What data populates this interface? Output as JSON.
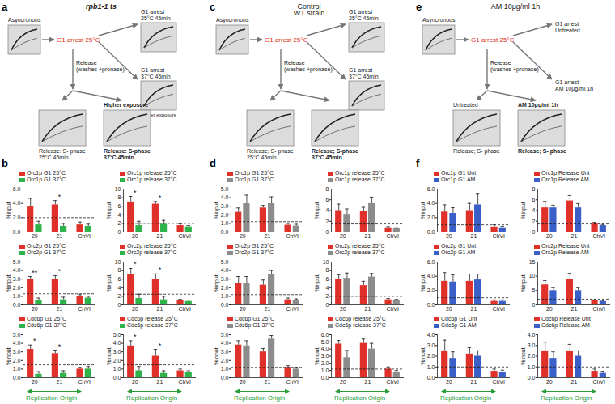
{
  "diagrams": [
    {
      "letter": "a",
      "title": [
        "rpb1-1 ts"
      ],
      "start": [
        "Asyncronous"
      ],
      "arrest": [
        "G1 arrest 25°C"
      ],
      "release": [
        "Release",
        "(washes +pronase)"
      ],
      "side_gels": [
        {
          "above": [
            "G1 arrest",
            "25°C 45min"
          ],
          "below": []
        },
        {
          "above": [
            "G1 arrest",
            "37°C 45min"
          ],
          "below": [
            "Higher exposure"
          ]
        }
      ],
      "bottom_gels": [
        {
          "above": [],
          "below": [
            "Release: S- phase",
            "25°C 45min"
          ]
        },
        {
          "above": [
            "Higher exposure"
          ],
          "below": [
            "Release: S-phase",
            "37°C 45min"
          ]
        }
      ]
    },
    {
      "letter": "c",
      "title": [
        "Control",
        "WT strain"
      ],
      "start": [
        "Asyncronous"
      ],
      "arrest": [
        "G1 arrest 25°C"
      ],
      "release": [
        "Release",
        "(washes +pronase)"
      ],
      "side_gels": [
        {
          "above": [
            "G1 arrest",
            "25°C 45min"
          ],
          "below": []
        },
        {
          "above": [
            "G1 arrest",
            "37°C 45min"
          ],
          "below": []
        }
      ],
      "bottom_gels": [
        {
          "above": [],
          "below": [
            "Release; S- phase",
            "25°C 45min"
          ]
        },
        {
          "above": [],
          "below": [
            "Release; S-phase",
            "37°C 45min"
          ]
        }
      ]
    },
    {
      "letter": "e",
      "title": [
        "AM 10μg/ml 1h"
      ],
      "start": [
        "Asyncronous"
      ],
      "arrest": [
        "G1 arrest 25°C"
      ],
      "release": [
        "Release",
        "(washes +pronase)"
      ],
      "side_labels": [
        [
          "G1 arrest",
          "Untreated"
        ],
        [
          "G1 arrest",
          "AM 10μg/ml 1h"
        ]
      ],
      "bottom_gels": [
        {
          "above": [
            "Untreated"
          ],
          "below": [
            "Release; S- phase"
          ]
        },
        {
          "above": [
            "AM 10μg/ml 1h"
          ],
          "below": [
            "Release; S- phase"
          ]
        }
      ]
    }
  ],
  "chart_panels": [
    {
      "letter": "b",
      "footer": "Replication Origin"
    },
    {
      "letter": "d",
      "footer": "Replication Origin"
    },
    {
      "letter": "f",
      "footer": "Replication Origin"
    }
  ],
  "chart_data": [
    {
      "type": "bar",
      "categories": [
        "20",
        "21",
        "ChVI"
      ],
      "y_label": "%input",
      "ylim": [
        0,
        6
      ],
      "yticks": [
        0,
        2,
        4,
        6
      ],
      "legend": "top-left",
      "reference_line": 2,
      "series": [
        {
          "name": "Orc1p G1 25°C",
          "color": "#e0302a",
          "values": [
            3.5,
            3.8,
            1.0
          ],
          "errors": [
            1.2,
            0.6,
            0.4
          ]
        },
        {
          "name": "Orc1p G1 37°C",
          "color": "#2db34a",
          "values": [
            1.0,
            0.8,
            0.8
          ],
          "errors": [
            0.5,
            0.4,
            0.3
          ]
        }
      ],
      "annotations": [
        {
          "category": "21",
          "text": "*"
        }
      ]
    },
    {
      "type": "bar",
      "categories": [
        "20",
        "21",
        "ChVI"
      ],
      "y_label": "%input",
      "ylim": [
        0,
        10
      ],
      "yticks": [
        0,
        2,
        4,
        6,
        8,
        10
      ],
      "legend": "top-left",
      "reference_line": 2,
      "series": [
        {
          "name": "Orc1p release 25°C",
          "color": "#e0302a",
          "values": [
            7.0,
            6.5,
            1.5
          ],
          "errors": [
            1.3,
            0.6,
            0.4
          ]
        },
        {
          "name": "Orc1p release 37°C",
          "color": "#2db34a",
          "values": [
            1.5,
            1.8,
            1.2
          ],
          "errors": [
            1.0,
            0.9,
            0.3
          ]
        }
      ],
      "annotations": [
        {
          "category": "20",
          "text": "*"
        },
        {
          "category": "21",
          "text": "*"
        }
      ]
    },
    {
      "type": "bar",
      "categories": [
        "20",
        "21",
        "ChVI"
      ],
      "y_label": "%input",
      "ylim": [
        0,
        5
      ],
      "yticks": [
        0,
        1,
        2,
        3,
        4,
        5
      ],
      "legend": "top-left",
      "reference_line": 1.3,
      "series": [
        {
          "name": "Orc2p G1 25°C",
          "color": "#e0302a",
          "values": [
            3.0,
            3.0,
            1.0
          ],
          "errors": [
            0.3,
            0.4,
            0.2
          ]
        },
        {
          "name": "Orc2p G1 37°C",
          "color": "#2db34a",
          "values": [
            0.5,
            0.6,
            0.8
          ],
          "errors": [
            0.3,
            0.3,
            0.2
          ]
        }
      ],
      "annotations": [
        {
          "category": "20",
          "text": "**"
        },
        {
          "category": "21",
          "text": "*"
        }
      ]
    },
    {
      "type": "bar",
      "categories": [
        "20",
        "21",
        "ChVI"
      ],
      "y_label": "%input",
      "ylim": [
        0,
        10
      ],
      "yticks": [
        0,
        2,
        4,
        6,
        8,
        10
      ],
      "legend": "top-left",
      "reference_line": 2.5,
      "series": [
        {
          "name": "Orc2p release 25°C",
          "color": "#e0302a",
          "values": [
            7.0,
            6.0,
            1.0
          ],
          "errors": [
            1.5,
            1.2,
            0.3
          ]
        },
        {
          "name": "Orc2p release 37°C",
          "color": "#2db34a",
          "values": [
            1.5,
            1.2,
            0.8
          ],
          "errors": [
            1.0,
            0.8,
            0.3
          ]
        }
      ],
      "annotations": [
        {
          "category": "20",
          "text": "*"
        },
        {
          "category": "21",
          "text": "*"
        }
      ]
    },
    {
      "type": "bar",
      "categories": [
        "20",
        "21",
        "ChVI"
      ],
      "y_label": "%input",
      "ylim": [
        0,
        5
      ],
      "yticks": [
        0,
        1,
        2,
        3,
        4,
        5
      ],
      "legend": "top-left",
      "reference_line": 1.5,
      "series": [
        {
          "name": "Cdc6p G1 25°C",
          "color": "#e0302a",
          "values": [
            3.3,
            2.8,
            1.0
          ],
          "errors": [
            0.5,
            0.4,
            0.2
          ]
        },
        {
          "name": "Cdc6p G1 37°C",
          "color": "#2db34a",
          "values": [
            0.4,
            0.5,
            1.0
          ],
          "errors": [
            0.3,
            0.3,
            0.3
          ]
        }
      ],
      "annotations": [
        {
          "category": "20",
          "text": "*"
        },
        {
          "category": "21",
          "text": "*"
        }
      ]
    },
    {
      "type": "bar",
      "categories": [
        "20",
        "21",
        "ChVI"
      ],
      "y_label": "%input",
      "ylim": [
        0,
        5
      ],
      "yticks": [
        0,
        1,
        2,
        3,
        4,
        5
      ],
      "legend": "top-left",
      "reference_line": 1.5,
      "series": [
        {
          "name": "Cdc6p release 25°C",
          "color": "#e0302a",
          "values": [
            3.7,
            2.5,
            0.8
          ],
          "errors": [
            0.6,
            0.8,
            0.2
          ]
        },
        {
          "name": "Cdc6p release 37°C",
          "color": "#2db34a",
          "values": [
            0.8,
            0.5,
            0.6
          ],
          "errors": [
            0.5,
            0.3,
            0.2
          ]
        }
      ],
      "annotations": [
        {
          "category": "20",
          "text": "*"
        },
        {
          "category": "21",
          "text": "*"
        }
      ]
    },
    {
      "type": "bar",
      "categories": [
        "20",
        "21",
        "ChVI"
      ],
      "y_label": "%input",
      "ylim": [
        0,
        5
      ],
      "yticks": [
        0,
        1,
        2,
        3,
        4,
        5
      ],
      "legend": "top-left",
      "reference_line": 1.2,
      "series": [
        {
          "name": "Orc1p G1 25°C",
          "color": "#e0302a",
          "values": [
            2.3,
            2.8,
            0.8
          ],
          "errors": [
            0.5,
            0.3,
            0.2
          ]
        },
        {
          "name": "Orc1p G1 37°C",
          "color": "#8c8c8c",
          "values": [
            3.3,
            3.3,
            0.7
          ],
          "errors": [
            1.0,
            0.8,
            0.2
          ]
        }
      ]
    },
    {
      "type": "bar",
      "categories": [
        "20",
        "21",
        "ChVI"
      ],
      "y_label": "%input",
      "ylim": [
        0,
        8
      ],
      "yticks": [
        0,
        2,
        4,
        6,
        8
      ],
      "legend": "top-left",
      "reference_line": 1.5,
      "series": [
        {
          "name": "Orc1p release 25°C",
          "color": "#e0302a",
          "values": [
            4.0,
            3.8,
            0.8
          ],
          "errors": [
            1.2,
            0.8,
            0.2
          ]
        },
        {
          "name": "Orc1p release 37°C",
          "color": "#8c8c8c",
          "values": [
            3.3,
            5.3,
            0.6
          ],
          "errors": [
            1.0,
            1.2,
            0.2
          ]
        }
      ]
    },
    {
      "type": "bar",
      "categories": [
        "20",
        "21",
        "ChVI"
      ],
      "y_label": "%input",
      "ylim": [
        0,
        5
      ],
      "yticks": [
        0,
        1,
        2,
        3,
        4,
        5
      ],
      "legend": "top-left",
      "reference_line": 1.2,
      "series": [
        {
          "name": "Orc2p G1 25°C",
          "color": "#e0302a",
          "values": [
            2.5,
            2.3,
            0.6
          ],
          "errors": [
            0.8,
            0.6,
            0.2
          ]
        },
        {
          "name": "Orc2p G1 37°C",
          "color": "#8c8c8c",
          "values": [
            2.5,
            3.5,
            0.5
          ],
          "errors": [
            0.8,
            0.5,
            0.2
          ]
        }
      ]
    },
    {
      "type": "bar",
      "categories": [
        "20",
        "21",
        "ChVI"
      ],
      "y_label": "%input",
      "ylim": [
        0,
        10
      ],
      "yticks": [
        0,
        2,
        4,
        6,
        8,
        10
      ],
      "legend": "top-left",
      "reference_line": 2,
      "series": [
        {
          "name": "Orc2p release 25°C",
          "color": "#e0302a",
          "values": [
            6.0,
            4.5,
            1.2
          ],
          "errors": [
            1.0,
            1.0,
            0.3
          ]
        },
        {
          "name": "Orc2p release 37°C",
          "color": "#8c8c8c",
          "values": [
            6.2,
            6.5,
            1.0
          ],
          "errors": [
            1.2,
            0.8,
            0.3
          ]
        }
      ]
    },
    {
      "type": "bar",
      "categories": [
        "20",
        "21",
        "ChVI"
      ],
      "y_label": "%input",
      "ylim": [
        0,
        5
      ],
      "yticks": [
        0,
        1,
        2,
        3,
        4,
        5
      ],
      "legend": "top-left",
      "reference_line": 1.2,
      "series": [
        {
          "name": "Cdc6p G1 25°C",
          "color": "#e0302a",
          "values": [
            3.8,
            3.0,
            1.2
          ],
          "errors": [
            0.5,
            0.4,
            0.2
          ]
        },
        {
          "name": "Cdc6p G1 37°C",
          "color": "#8c8c8c",
          "values": [
            3.7,
            4.5,
            1.0
          ],
          "errors": [
            0.6,
            0.4,
            0.2
          ]
        }
      ]
    },
    {
      "type": "bar",
      "categories": [
        "20",
        "21",
        "ChVI"
      ],
      "y_label": "%input",
      "ylim": [
        0,
        6
      ],
      "yticks": [
        0,
        1,
        2,
        3,
        4,
        5,
        6
      ],
      "legend": "top-left",
      "reference_line": 1.2,
      "series": [
        {
          "name": "Cdc6p release 25°C",
          "color": "#e0302a",
          "values": [
            4.7,
            4.8,
            1.2
          ],
          "errors": [
            0.5,
            0.6,
            0.3
          ]
        },
        {
          "name": "Cdc6p release 37°C",
          "color": "#8c8c8c",
          "values": [
            2.8,
            4.0,
            0.8
          ],
          "errors": [
            1.0,
            0.8,
            0.2
          ]
        }
      ]
    },
    {
      "type": "bar",
      "categories": [
        "20",
        "21",
        "ChVI"
      ],
      "y_label": "%input",
      "ylim": [
        0,
        6
      ],
      "yticks": [
        0,
        2,
        4,
        6
      ],
      "legend": "top-left",
      "reference_line": 1,
      "series": [
        {
          "name": "Orc1p G1 Unt",
          "color": "#e0302a",
          "values": [
            2.8,
            3.0,
            0.7
          ],
          "errors": [
            1.0,
            1.0,
            0.3
          ]
        },
        {
          "name": "Orc1p G1 AM",
          "color": "#3a5fc8",
          "values": [
            2.6,
            3.8,
            0.6
          ],
          "errors": [
            0.8,
            1.5,
            0.2
          ]
        }
      ]
    },
    {
      "type": "bar",
      "categories": [
        "20",
        "21",
        "ChVI"
      ],
      "y_label": "%input",
      "ylim": [
        0,
        8
      ],
      "yticks": [
        0,
        2,
        4,
        6,
        8
      ],
      "legend": "top-left",
      "reference_line": 1.5,
      "series": [
        {
          "name": "Orc1p Release Unt",
          "color": "#e0302a",
          "values": [
            4.5,
            5.8,
            1.5
          ],
          "errors": [
            1.2,
            1.0,
            0.3
          ]
        },
        {
          "name": "Orc1p Release AM",
          "color": "#3a5fc8",
          "values": [
            4.5,
            4.5,
            1.2
          ],
          "errors": [
            0.5,
            0.8,
            0.2
          ]
        }
      ]
    },
    {
      "type": "bar",
      "categories": [
        "20",
        "21",
        "ChVI"
      ],
      "y_label": "%input",
      "ylim": [
        0,
        6
      ],
      "yticks": [
        0,
        2,
        4,
        6
      ],
      "legend": "top-left",
      "reference_line": 1,
      "series": [
        {
          "name": "Orc2p G1 Unt",
          "color": "#e0302a",
          "values": [
            3.3,
            3.3,
            0.5
          ],
          "errors": [
            1.2,
            1.0,
            0.2
          ]
        },
        {
          "name": "Orc2p G1 AM",
          "color": "#3a5fc8",
          "values": [
            3.2,
            3.5,
            0.5
          ],
          "errors": [
            1.0,
            0.8,
            0.2
          ]
        }
      ]
    },
    {
      "type": "bar",
      "categories": [
        "20",
        "21",
        "ChVI"
      ],
      "y_label": "%input",
      "ylim": [
        0,
        15
      ],
      "yticks": [
        0,
        5,
        10,
        15
      ],
      "legend": "top-left",
      "reference_line": 2,
      "series": [
        {
          "name": "Orc2p Release Unt",
          "color": "#e0302a",
          "values": [
            7.0,
            9.0,
            1.5
          ],
          "errors": [
            1.5,
            2.0,
            0.3
          ]
        },
        {
          "name": "Orc2p Release AM",
          "color": "#3a5fc8",
          "values": [
            5.0,
            5.0,
            1.2
          ],
          "errors": [
            1.0,
            1.0,
            0.3
          ]
        }
      ]
    },
    {
      "type": "bar",
      "categories": [
        "20",
        "21",
        "ChVI"
      ],
      "y_label": "%input",
      "ylim": [
        0,
        4
      ],
      "yticks": [
        0,
        1,
        2,
        3,
        4
      ],
      "legend": "top-left",
      "reference_line": 1,
      "series": [
        {
          "name": "Cdc6p G1 Unt",
          "color": "#e0302a",
          "values": [
            2.5,
            2.2,
            0.6
          ],
          "errors": [
            1.0,
            0.6,
            0.2
          ]
        },
        {
          "name": "Cdc6p G1 AM",
          "color": "#3a5fc8",
          "values": [
            1.8,
            2.0,
            0.5
          ],
          "errors": [
            0.6,
            0.5,
            0.2
          ]
        }
      ]
    },
    {
      "type": "bar",
      "categories": [
        "20",
        "21",
        "ChVI"
      ],
      "y_label": "%input",
      "ylim": [
        0,
        4
      ],
      "yticks": [
        0,
        1,
        2,
        3,
        4
      ],
      "legend": "top-left",
      "reference_line": 1,
      "series": [
        {
          "name": "Cdc6p Release Unt",
          "color": "#e0302a",
          "values": [
            2.5,
            2.5,
            0.6
          ],
          "errors": [
            0.8,
            0.6,
            0.2
          ]
        },
        {
          "name": "Cdc6p Release AM",
          "color": "#3a5fc8",
          "values": [
            1.8,
            2.0,
            0.4
          ],
          "errors": [
            0.6,
            0.5,
            0.2
          ]
        }
      ]
    }
  ]
}
